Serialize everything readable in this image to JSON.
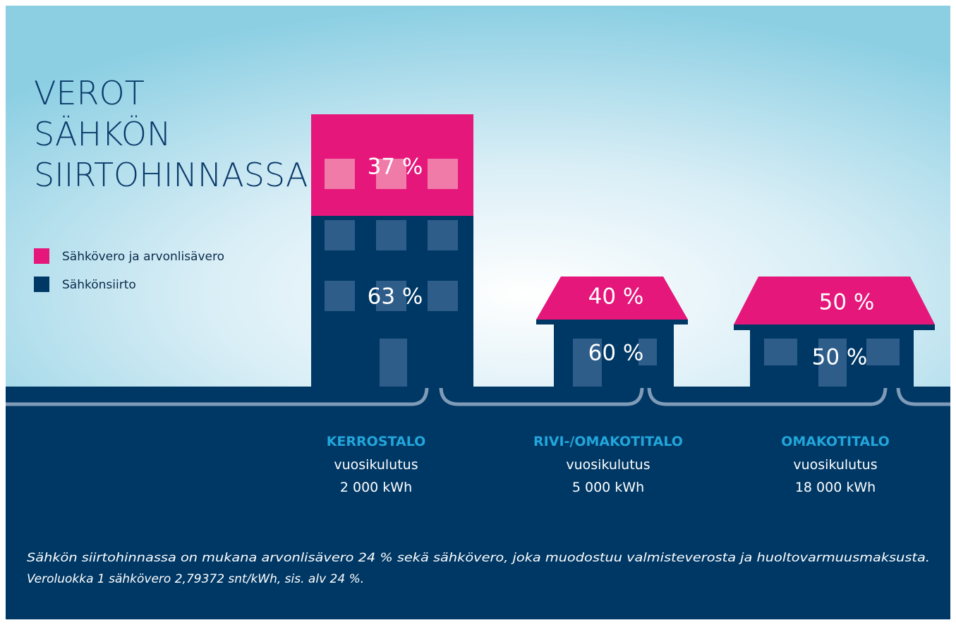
{
  "title": [
    "VEROT",
    "SÄHKÖN",
    "SIIRTOHINNASSA"
  ],
  "legend": [
    "Sähkövero ja arvonlisävero",
    "Sähkönsiirto"
  ],
  "buildings": [
    {
      "tax": "37 %",
      "transfer": "63 %",
      "name": "KERROSTALO",
      "consumption_label": "vuosikulutus",
      "consumption": "2 000 kWh"
    },
    {
      "tax": "40 %",
      "transfer": "60 %",
      "name": "RIVI-/OMAKOTITALO",
      "consumption_label": "vuosikulutus",
      "consumption": "5 000 kWh"
    },
    {
      "tax": "50 %",
      "transfer": "50 %",
      "name": "OMAKOTITALO",
      "consumption_label": "vuosikulutus",
      "consumption": "18 000 kWh"
    }
  ],
  "footnote": [
    "Sähkön siirtohinnassa on mukana arvonlisävero 24 % sekä sähkövero, joka muodostuu valmisteverosta ja huoltovarmuusmaksusta.",
    "Veroluokka 1 sähkövero 2,79372 snt/kWh, sis. alv 24 %."
  ]
}
